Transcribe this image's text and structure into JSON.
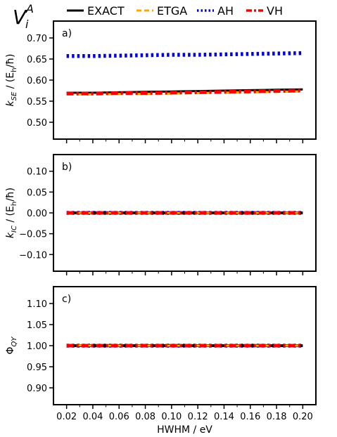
{
  "figure_label": {
    "base": "V",
    "sub": "i",
    "sup": "A"
  },
  "legend": {
    "placement": "top",
    "entries": [
      {
        "name": "EXACT",
        "color": "#000000",
        "style": "solid"
      },
      {
        "name": "ETGA",
        "color": "#ffa500",
        "style": "dashed"
      },
      {
        "name": "AH",
        "color": "#0000dd",
        "style": "dotted"
      },
      {
        "name": "VH",
        "color": "#ff0000",
        "style": "dashdot"
      }
    ]
  },
  "chart_data": [
    {
      "type": "line",
      "panel_label": "a)",
      "ylabel": {
        "base": "k",
        "sub": "SE",
        "rest": " / (E",
        "sub2": "h",
        "tail": "/ħ)"
      },
      "x": [
        0.02,
        0.04,
        0.06,
        0.08,
        0.1,
        0.12,
        0.14,
        0.16,
        0.18,
        0.2
      ],
      "xlim": [
        0.01,
        0.21
      ],
      "ylim": [
        0.46,
        0.74
      ],
      "yticks": [
        "0.50",
        "0.55",
        "0.60",
        "0.65",
        "0.70"
      ],
      "ytick_values": [
        0.5,
        0.55,
        0.6,
        0.65,
        0.7
      ],
      "series": [
        {
          "name": "EXACT",
          "values": [
            0.57,
            0.57,
            0.571,
            0.572,
            0.573,
            0.574,
            0.575,
            0.576,
            0.577,
            0.578
          ]
        },
        {
          "name": "ETGA",
          "values": [
            0.566,
            0.566,
            0.567,
            0.567,
            0.568,
            0.569,
            0.57,
            0.571,
            0.572,
            0.573
          ]
        },
        {
          "name": "AH",
          "values": [
            0.657,
            0.657,
            0.658,
            0.659,
            0.66,
            0.66,
            0.661,
            0.662,
            0.663,
            0.664
          ]
        },
        {
          "name": "VH",
          "values": [
            0.568,
            0.568,
            0.569,
            0.569,
            0.57,
            0.571,
            0.572,
            0.573,
            0.574,
            0.575
          ]
        }
      ]
    },
    {
      "type": "line",
      "panel_label": "b)",
      "ylabel": {
        "base": "k",
        "sub": "IC",
        "rest": " / (E",
        "sub2": "h",
        "tail": "/ħ)"
      },
      "x": [
        0.02,
        0.04,
        0.06,
        0.08,
        0.1,
        0.12,
        0.14,
        0.16,
        0.18,
        0.2
      ],
      "xlim": [
        0.01,
        0.21
      ],
      "ylim": [
        -0.14,
        0.14
      ],
      "yticks": [
        "−0.10",
        "−0.05",
        "0.00",
        "0.05",
        "0.10"
      ],
      "ytick_values": [
        -0.1,
        -0.05,
        0.0,
        0.05,
        0.1
      ],
      "series": [
        {
          "name": "EXACT",
          "values": [
            0,
            0,
            0,
            0,
            0,
            0,
            0,
            0,
            0,
            0
          ]
        },
        {
          "name": "ETGA",
          "values": [
            0,
            0,
            0,
            0,
            0,
            0,
            0,
            0,
            0,
            0
          ]
        },
        {
          "name": "AH",
          "values": [
            0,
            0,
            0,
            0,
            0,
            0,
            0,
            0,
            0,
            0
          ]
        },
        {
          "name": "VH",
          "values": [
            0,
            0,
            0,
            0,
            0,
            0,
            0,
            0,
            0,
            0
          ]
        }
      ]
    },
    {
      "type": "line",
      "panel_label": "c)",
      "ylabel": {
        "base": "Φ",
        "sub": "QY",
        "rest": "",
        "sub2": "",
        "tail": ""
      },
      "xlabel": "HWHM / eV",
      "x": [
        0.02,
        0.04,
        0.06,
        0.08,
        0.1,
        0.12,
        0.14,
        0.16,
        0.18,
        0.2
      ],
      "xlim": [
        0.01,
        0.21
      ],
      "xticks": [
        "0.02",
        "0.04",
        "0.06",
        "0.08",
        "0.10",
        "0.12",
        "0.14",
        "0.16",
        "0.18",
        "0.20"
      ],
      "ylim": [
        0.86,
        1.14
      ],
      "yticks": [
        "0.90",
        "0.95",
        "1.00",
        "1.05",
        "1.10"
      ],
      "ytick_values": [
        0.9,
        0.95,
        1.0,
        1.05,
        1.1
      ],
      "series": [
        {
          "name": "EXACT",
          "values": [
            1,
            1,
            1,
            1,
            1,
            1,
            1,
            1,
            1,
            1
          ]
        },
        {
          "name": "ETGA",
          "values": [
            1.001,
            1,
            1,
            1,
            1,
            1,
            1,
            1,
            1,
            1
          ]
        },
        {
          "name": "AH",
          "values": [
            1,
            1,
            1,
            1,
            1,
            1,
            1,
            1,
            1,
            1
          ]
        },
        {
          "name": "VH",
          "values": [
            1,
            1,
            1,
            1,
            1,
            1,
            1,
            1,
            1,
            1
          ]
        }
      ]
    }
  ]
}
